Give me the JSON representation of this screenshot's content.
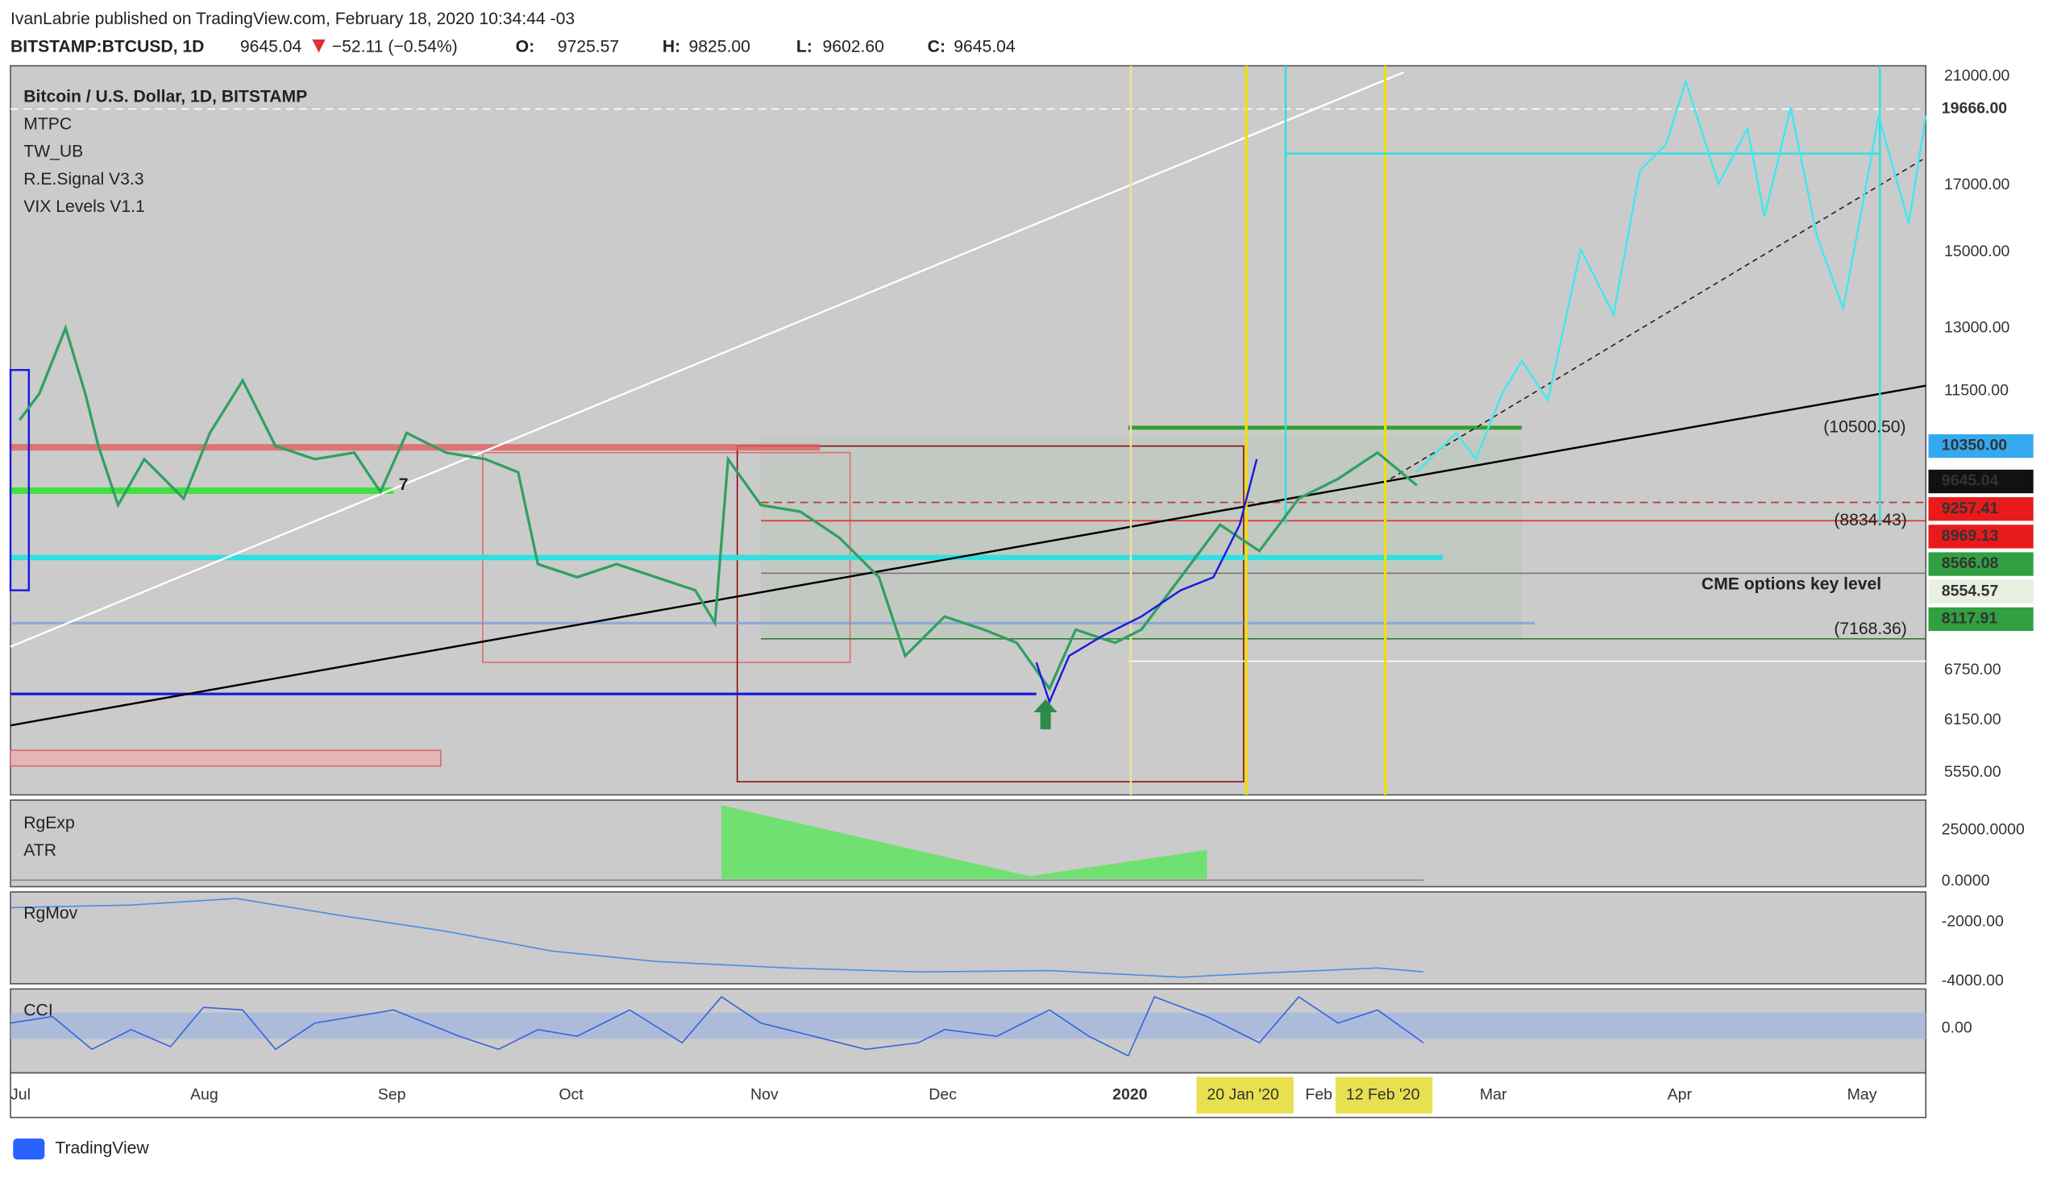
{
  "header": {
    "byline": "IvanLabrie published on TradingView.com, February 18, 2020 10:34:44 -03",
    "symbol": "BITSTAMP:BTCUSD, 1D",
    "last": "9645.04",
    "change": "−52.11 (−0.54%)",
    "o_label": "O:",
    "o": "9725.57",
    "h_label": "H:",
    "h": "9825.00",
    "l_label": "L:",
    "l": "9602.60",
    "c_label": "C:",
    "c": "9645.04"
  },
  "legend": [
    "Bitcoin / U.S. Dollar, 1D, BITSTAMP",
    "MTPC",
    "TW_UB",
    "R.E.Signal V3.3",
    "VIX Levels V1.1"
  ],
  "price_axis": [
    "21000.00",
    "17000.00",
    "15000.00",
    "13000.00",
    "11500.00",
    "6750.00",
    "6150.00",
    "5550.00"
  ],
  "price_labels": [
    "19666.00",
    "10350.00",
    "9645.04",
    "9257.41",
    "8969.13",
    "8566.08",
    "8554.57",
    "8117.91"
  ],
  "chart_labels": [
    "(10500.50)",
    "(8834.43)",
    "CME options key level",
    "(7168.36)",
    "7"
  ],
  "time_axis": [
    "Jul",
    "Aug",
    "Sep",
    "Oct",
    "Nov",
    "Dec",
    "2020",
    "Feb",
    "Mar",
    "Apr",
    "May"
  ],
  "time_markers": [
    "20 Jan '20",
    "12 Feb '20"
  ],
  "panes": [
    {
      "labels": [
        "RgExp",
        "ATR"
      ],
      "ticks": [
        "25000.0000",
        "0.0000"
      ]
    },
    {
      "labels": [
        "RgMov"
      ],
      "ticks": [
        "-2000.00",
        "-4000.00"
      ]
    },
    {
      "labels": [
        "CCI"
      ],
      "ticks": [
        "0.00"
      ]
    }
  ],
  "footer": "TradingView"
}
